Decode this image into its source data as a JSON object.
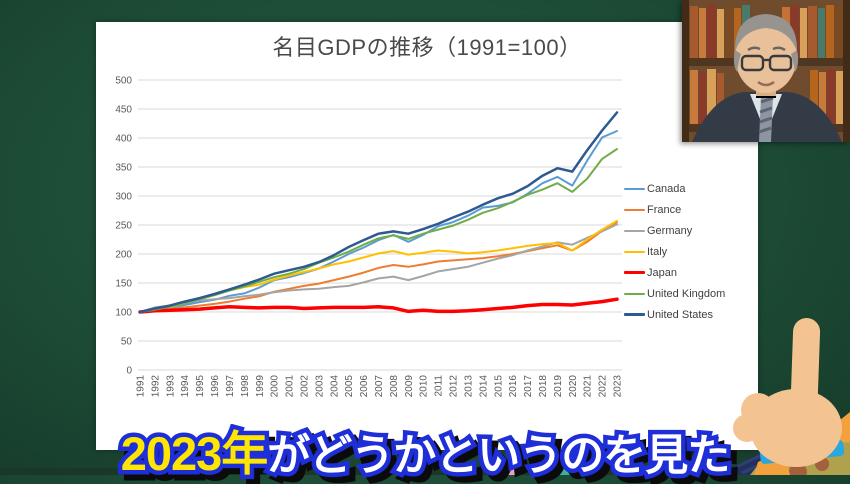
{
  "subtitle": {
    "highlight": "2023年",
    "rest": "がどうかというのを見た",
    "highlight_color": "#FFE600",
    "text_color": "#FFFFFF",
    "outline_color": "#1E2ED8"
  },
  "chart_data": {
    "type": "line",
    "title": "名目GDPの推移（1991=100）",
    "xlabel": "",
    "ylabel": "",
    "ylim": [
      0,
      500
    ],
    "y_ticks": [
      0,
      50,
      100,
      150,
      200,
      250,
      300,
      350,
      400,
      450,
      500
    ],
    "grid": true,
    "legend_position": "right",
    "x": [
      1991,
      1992,
      1993,
      1994,
      1995,
      1996,
      1997,
      1998,
      1999,
      2000,
      2001,
      2002,
      2003,
      2004,
      2005,
      2006,
      2007,
      2008,
      2009,
      2010,
      2011,
      2012,
      2013,
      2014,
      2015,
      2016,
      2017,
      2018,
      2019,
      2020,
      2021,
      2022,
      2023
    ],
    "series": [
      {
        "name": "Canada",
        "color": "#5B9BD5",
        "width": 2,
        "values": [
          100,
          103,
          106,
          112,
          117,
          121,
          128,
          132,
          142,
          155,
          160,
          167,
          175,
          187,
          200,
          211,
          224,
          233,
          221,
          233,
          248,
          255,
          266,
          280,
          283,
          289,
          304,
          322,
          333,
          318,
          361,
          401,
          412
        ]
      },
      {
        "name": "France",
        "color": "#ED7D31",
        "width": 2,
        "values": [
          100,
          103,
          104,
          108,
          111,
          114,
          118,
          123,
          127,
          135,
          140,
          145,
          149,
          155,
          161,
          168,
          176,
          181,
          178,
          182,
          187,
          189,
          191,
          193,
          196,
          200,
          205,
          210,
          215,
          206,
          221,
          240,
          255
        ]
      },
      {
        "name": "Germany",
        "color": "#A5A5A5",
        "width": 2,
        "values": [
          100,
          108,
          111,
          116,
          120,
          122,
          124,
          127,
          130,
          134,
          137,
          139,
          140,
          143,
          145,
          151,
          158,
          161,
          155,
          162,
          170,
          174,
          178,
          185,
          192,
          198,
          206,
          213,
          220,
          216,
          228,
          239,
          251
        ]
      },
      {
        "name": "Italy",
        "color": "#FFC000",
        "width": 2,
        "values": [
          100,
          105,
          108,
          115,
          124,
          131,
          137,
          143,
          147,
          156,
          163,
          169,
          175,
          182,
          187,
          194,
          201,
          205,
          199,
          202,
          206,
          204,
          201,
          203,
          206,
          210,
          214,
          217,
          219,
          206,
          225,
          242,
          257
        ]
      },
      {
        "name": "Japan",
        "color": "#FF0000",
        "width": 3.5,
        "values": [
          100,
          102,
          103,
          104,
          105,
          107,
          109,
          108,
          107,
          108,
          108,
          106,
          107,
          108,
          108,
          108,
          109,
          107,
          101,
          103,
          101,
          101,
          102,
          104,
          106,
          108,
          111,
          113,
          113,
          112,
          115,
          118,
          122
        ]
      },
      {
        "name": "United Kingdom",
        "color": "#70AD47",
        "width": 2,
        "values": [
          100,
          104,
          109,
          115,
          122,
          129,
          137,
          144,
          152,
          160,
          166,
          174,
          185,
          194,
          204,
          216,
          227,
          232,
          226,
          235,
          242,
          249,
          259,
          271,
          279,
          290,
          302,
          311,
          322,
          307,
          330,
          364,
          381
        ]
      },
      {
        "name": "United States",
        "color": "#2E5B8F",
        "width": 2.5,
        "values": [
          100,
          106,
          111,
          118,
          124,
          131,
          139,
          147,
          156,
          166,
          172,
          178,
          186,
          198,
          212,
          224,
          235,
          239,
          235,
          243,
          252,
          263,
          273,
          285,
          296,
          304,
          317,
          335,
          348,
          342,
          379,
          413,
          444
        ]
      }
    ]
  }
}
